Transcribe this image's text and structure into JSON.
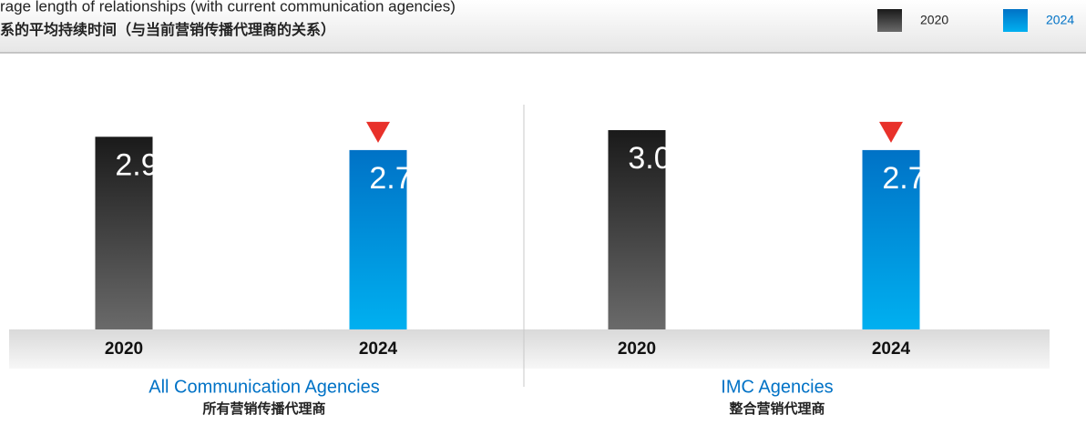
{
  "header": {
    "title": "rage length of relationships (with current communication agencies)",
    "subtitle": "系的平均持续时间（与当前营销传播代理商的关系）"
  },
  "legend": [
    {
      "name": "2020",
      "color": "#1a1a1a"
    },
    {
      "name": "2024",
      "color": "#0072c6"
    }
  ],
  "chart_data": [
    {
      "type": "bar",
      "title": "All Communication Agencies",
      "subtitle": "所有营销传播代理商",
      "categories": [
        "2020",
        "2024"
      ],
      "values": [
        2.9,
        2.7
      ],
      "colors": [
        "#1a1a1a",
        "#0072c6"
      ]
    },
    {
      "type": "bar",
      "title": "IMC Agencies",
      "subtitle": "整合营销代理商",
      "categories": [
        "2020",
        "2024"
      ],
      "values": [
        3.0,
        2.7
      ],
      "value_labels": [
        "3.0",
        "2.7"
      ],
      "colors": [
        "#1a1a1a",
        "#0072c6"
      ]
    }
  ]
}
